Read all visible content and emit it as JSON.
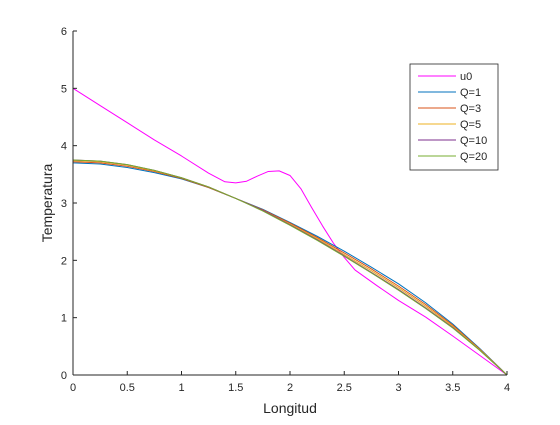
{
  "chart_data": {
    "type": "line",
    "title": "",
    "xlabel": "Longitud",
    "ylabel": "Temperatura",
    "xlim": [
      0,
      4
    ],
    "ylim": [
      0,
      6
    ],
    "xticks": [
      0,
      0.5,
      1,
      1.5,
      2,
      2.5,
      3,
      3.5,
      4
    ],
    "xtick_labels": [
      "0",
      "0.5",
      "1",
      "1.5",
      "2",
      "2.5",
      "3",
      "3.5",
      "4"
    ],
    "yticks": [
      0,
      1,
      2,
      3,
      4,
      5,
      6
    ],
    "ytick_labels": [
      "0",
      "1",
      "2",
      "3",
      "4",
      "5",
      "6"
    ],
    "grid": false,
    "legend_position": "top-right",
    "series": [
      {
        "name": "u0",
        "color": "#ff00ff",
        "x": [
          0,
          0.25,
          0.5,
          0.75,
          1.0,
          1.25,
          1.4,
          1.5,
          1.6,
          1.7,
          1.8,
          1.9,
          2.0,
          2.1,
          2.2,
          2.3,
          2.4,
          2.5,
          2.6,
          2.8,
          3.0,
          3.25,
          3.5,
          3.75,
          4.0
        ],
        "y": [
          5.0,
          4.7,
          4.4,
          4.1,
          3.82,
          3.52,
          3.37,
          3.35,
          3.38,
          3.47,
          3.55,
          3.56,
          3.48,
          3.25,
          2.92,
          2.6,
          2.3,
          2.05,
          1.83,
          1.56,
          1.3,
          1.01,
          0.68,
          0.34,
          0.0
        ]
      },
      {
        "name": "Q=1",
        "color": "#0072bd",
        "x": [
          0,
          0.25,
          0.5,
          0.75,
          1.0,
          1.25,
          1.5,
          1.75,
          2.0,
          2.25,
          2.5,
          2.75,
          3.0,
          3.25,
          3.5,
          3.75,
          4.0
        ],
        "y": [
          3.7,
          3.68,
          3.62,
          3.53,
          3.42,
          3.27,
          3.08,
          2.89,
          2.66,
          2.42,
          2.16,
          1.88,
          1.59,
          1.26,
          0.89,
          0.46,
          0.0
        ]
      },
      {
        "name": "Q=3",
        "color": "#d95319",
        "x": [
          0,
          0.25,
          0.5,
          0.75,
          1.0,
          1.25,
          1.5,
          1.75,
          2.0,
          2.25,
          2.5,
          2.75,
          3.0,
          3.25,
          3.5,
          3.75,
          4.0
        ],
        "y": [
          3.72,
          3.7,
          3.64,
          3.55,
          3.43,
          3.27,
          3.08,
          2.88,
          2.65,
          2.4,
          2.13,
          1.85,
          1.55,
          1.23,
          0.87,
          0.45,
          0.0
        ]
      },
      {
        "name": "Q=5",
        "color": "#edb120",
        "x": [
          0,
          0.25,
          0.5,
          0.75,
          1.0,
          1.25,
          1.5,
          1.75,
          2.0,
          2.25,
          2.5,
          2.75,
          3.0,
          3.25,
          3.5,
          3.75,
          4.0
        ],
        "y": [
          3.74,
          3.72,
          3.66,
          3.56,
          3.44,
          3.28,
          3.08,
          2.87,
          2.63,
          2.38,
          2.1,
          1.82,
          1.52,
          1.2,
          0.85,
          0.44,
          0.0
        ]
      },
      {
        "name": "Q=10",
        "color": "#7e2f8e",
        "x": [
          0,
          0.25,
          0.5,
          0.75,
          1.0,
          1.25,
          1.5,
          1.75,
          2.0,
          2.25,
          2.5,
          2.75,
          3.0,
          3.25,
          3.5,
          3.75,
          4.0
        ],
        "y": [
          3.75,
          3.73,
          3.67,
          3.57,
          3.44,
          3.28,
          3.08,
          2.87,
          2.62,
          2.36,
          2.08,
          1.79,
          1.49,
          1.17,
          0.83,
          0.43,
          0.0
        ]
      },
      {
        "name": "Q=20",
        "color": "#77ac30",
        "x": [
          0,
          0.25,
          0.5,
          0.75,
          1.0,
          1.25,
          1.5,
          1.75,
          2.0,
          2.25,
          2.5,
          2.75,
          3.0,
          3.25,
          3.5,
          3.75,
          4.0
        ],
        "y": [
          3.75,
          3.73,
          3.67,
          3.57,
          3.44,
          3.28,
          3.08,
          2.86,
          2.61,
          2.35,
          2.07,
          1.78,
          1.48,
          1.16,
          0.82,
          0.43,
          0.0
        ]
      }
    ]
  }
}
